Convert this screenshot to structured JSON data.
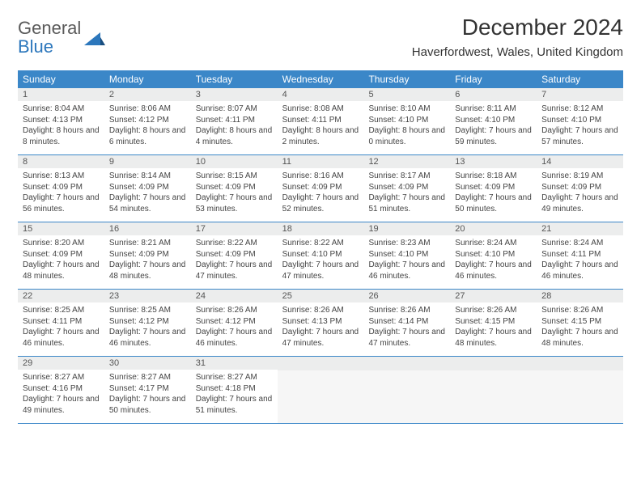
{
  "logo": {
    "word1": "General",
    "word2": "Blue"
  },
  "title": "December 2024",
  "location": "Haverfordwest, Wales, United Kingdom",
  "colors": {
    "header_bg": "#3b87c8",
    "header_text": "#ffffff",
    "daynum_bg": "#eceded",
    "border": "#3b87c8",
    "text": "#444444",
    "logo_gray": "#5a5a5a",
    "logo_blue": "#2c77bc"
  },
  "fonts": {
    "title_size": 28,
    "location_size": 15,
    "dayhead_size": 12,
    "daynum_size": 11,
    "body_size": 10
  },
  "day_headers": [
    "Sunday",
    "Monday",
    "Tuesday",
    "Wednesday",
    "Thursday",
    "Friday",
    "Saturday"
  ],
  "weeks": [
    [
      {
        "n": "1",
        "sunrise": "Sunrise: 8:04 AM",
        "sunset": "Sunset: 4:13 PM",
        "daylight": "Daylight: 8 hours and 8 minutes."
      },
      {
        "n": "2",
        "sunrise": "Sunrise: 8:06 AM",
        "sunset": "Sunset: 4:12 PM",
        "daylight": "Daylight: 8 hours and 6 minutes."
      },
      {
        "n": "3",
        "sunrise": "Sunrise: 8:07 AM",
        "sunset": "Sunset: 4:11 PM",
        "daylight": "Daylight: 8 hours and 4 minutes."
      },
      {
        "n": "4",
        "sunrise": "Sunrise: 8:08 AM",
        "sunset": "Sunset: 4:11 PM",
        "daylight": "Daylight: 8 hours and 2 minutes."
      },
      {
        "n": "5",
        "sunrise": "Sunrise: 8:10 AM",
        "sunset": "Sunset: 4:10 PM",
        "daylight": "Daylight: 8 hours and 0 minutes."
      },
      {
        "n": "6",
        "sunrise": "Sunrise: 8:11 AM",
        "sunset": "Sunset: 4:10 PM",
        "daylight": "Daylight: 7 hours and 59 minutes."
      },
      {
        "n": "7",
        "sunrise": "Sunrise: 8:12 AM",
        "sunset": "Sunset: 4:10 PM",
        "daylight": "Daylight: 7 hours and 57 minutes."
      }
    ],
    [
      {
        "n": "8",
        "sunrise": "Sunrise: 8:13 AM",
        "sunset": "Sunset: 4:09 PM",
        "daylight": "Daylight: 7 hours and 56 minutes."
      },
      {
        "n": "9",
        "sunrise": "Sunrise: 8:14 AM",
        "sunset": "Sunset: 4:09 PM",
        "daylight": "Daylight: 7 hours and 54 minutes."
      },
      {
        "n": "10",
        "sunrise": "Sunrise: 8:15 AM",
        "sunset": "Sunset: 4:09 PM",
        "daylight": "Daylight: 7 hours and 53 minutes."
      },
      {
        "n": "11",
        "sunrise": "Sunrise: 8:16 AM",
        "sunset": "Sunset: 4:09 PM",
        "daylight": "Daylight: 7 hours and 52 minutes."
      },
      {
        "n": "12",
        "sunrise": "Sunrise: 8:17 AM",
        "sunset": "Sunset: 4:09 PM",
        "daylight": "Daylight: 7 hours and 51 minutes."
      },
      {
        "n": "13",
        "sunrise": "Sunrise: 8:18 AM",
        "sunset": "Sunset: 4:09 PM",
        "daylight": "Daylight: 7 hours and 50 minutes."
      },
      {
        "n": "14",
        "sunrise": "Sunrise: 8:19 AM",
        "sunset": "Sunset: 4:09 PM",
        "daylight": "Daylight: 7 hours and 49 minutes."
      }
    ],
    [
      {
        "n": "15",
        "sunrise": "Sunrise: 8:20 AM",
        "sunset": "Sunset: 4:09 PM",
        "daylight": "Daylight: 7 hours and 48 minutes."
      },
      {
        "n": "16",
        "sunrise": "Sunrise: 8:21 AM",
        "sunset": "Sunset: 4:09 PM",
        "daylight": "Daylight: 7 hours and 48 minutes."
      },
      {
        "n": "17",
        "sunrise": "Sunrise: 8:22 AM",
        "sunset": "Sunset: 4:09 PM",
        "daylight": "Daylight: 7 hours and 47 minutes."
      },
      {
        "n": "18",
        "sunrise": "Sunrise: 8:22 AM",
        "sunset": "Sunset: 4:10 PM",
        "daylight": "Daylight: 7 hours and 47 minutes."
      },
      {
        "n": "19",
        "sunrise": "Sunrise: 8:23 AM",
        "sunset": "Sunset: 4:10 PM",
        "daylight": "Daylight: 7 hours and 46 minutes."
      },
      {
        "n": "20",
        "sunrise": "Sunrise: 8:24 AM",
        "sunset": "Sunset: 4:10 PM",
        "daylight": "Daylight: 7 hours and 46 minutes."
      },
      {
        "n": "21",
        "sunrise": "Sunrise: 8:24 AM",
        "sunset": "Sunset: 4:11 PM",
        "daylight": "Daylight: 7 hours and 46 minutes."
      }
    ],
    [
      {
        "n": "22",
        "sunrise": "Sunrise: 8:25 AM",
        "sunset": "Sunset: 4:11 PM",
        "daylight": "Daylight: 7 hours and 46 minutes."
      },
      {
        "n": "23",
        "sunrise": "Sunrise: 8:25 AM",
        "sunset": "Sunset: 4:12 PM",
        "daylight": "Daylight: 7 hours and 46 minutes."
      },
      {
        "n": "24",
        "sunrise": "Sunrise: 8:26 AM",
        "sunset": "Sunset: 4:12 PM",
        "daylight": "Daylight: 7 hours and 46 minutes."
      },
      {
        "n": "25",
        "sunrise": "Sunrise: 8:26 AM",
        "sunset": "Sunset: 4:13 PM",
        "daylight": "Daylight: 7 hours and 47 minutes."
      },
      {
        "n": "26",
        "sunrise": "Sunrise: 8:26 AM",
        "sunset": "Sunset: 4:14 PM",
        "daylight": "Daylight: 7 hours and 47 minutes."
      },
      {
        "n": "27",
        "sunrise": "Sunrise: 8:26 AM",
        "sunset": "Sunset: 4:15 PM",
        "daylight": "Daylight: 7 hours and 48 minutes."
      },
      {
        "n": "28",
        "sunrise": "Sunrise: 8:26 AM",
        "sunset": "Sunset: 4:15 PM",
        "daylight": "Daylight: 7 hours and 48 minutes."
      }
    ],
    [
      {
        "n": "29",
        "sunrise": "Sunrise: 8:27 AM",
        "sunset": "Sunset: 4:16 PM",
        "daylight": "Daylight: 7 hours and 49 minutes."
      },
      {
        "n": "30",
        "sunrise": "Sunrise: 8:27 AM",
        "sunset": "Sunset: 4:17 PM",
        "daylight": "Daylight: 7 hours and 50 minutes."
      },
      {
        "n": "31",
        "sunrise": "Sunrise: 8:27 AM",
        "sunset": "Sunset: 4:18 PM",
        "daylight": "Daylight: 7 hours and 51 minutes."
      },
      {
        "empty": true
      },
      {
        "empty": true
      },
      {
        "empty": true
      },
      {
        "empty": true
      }
    ]
  ]
}
